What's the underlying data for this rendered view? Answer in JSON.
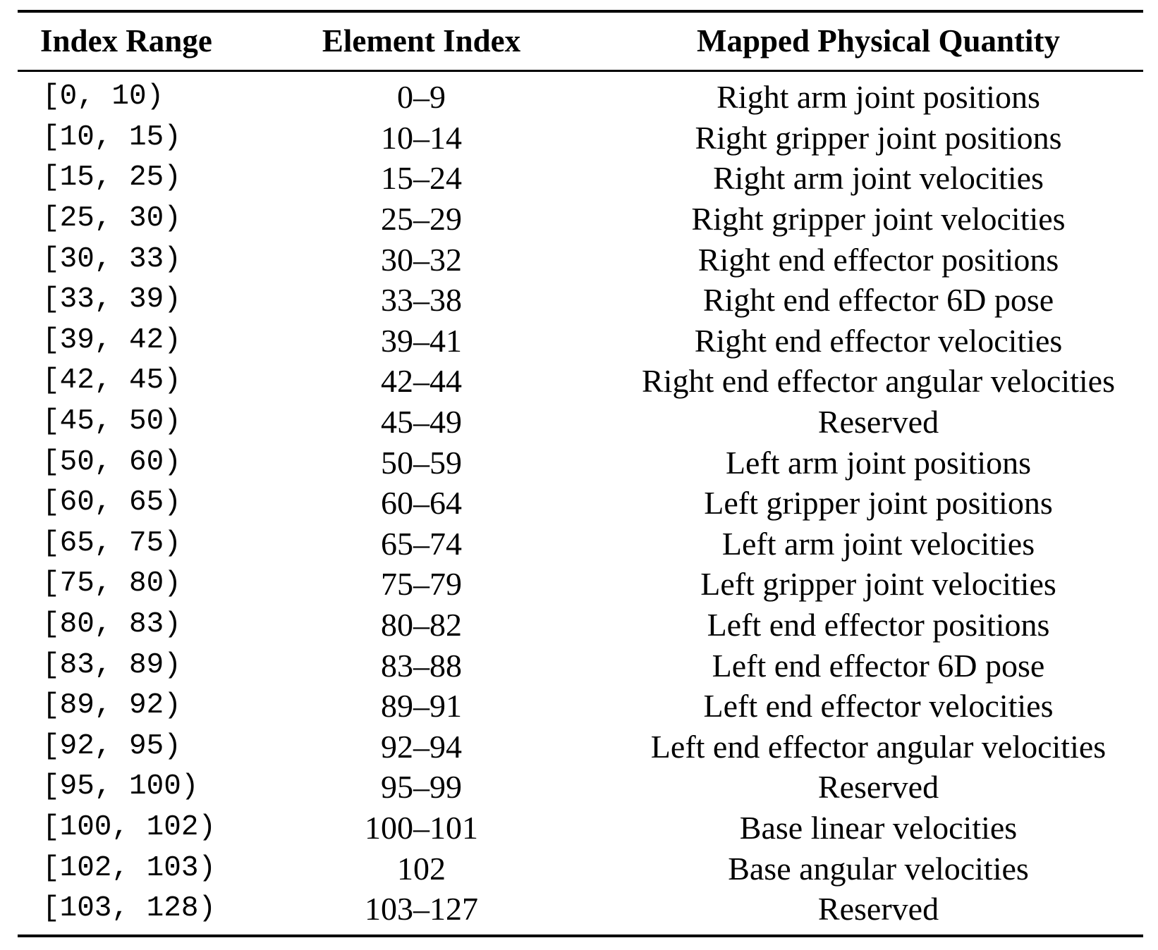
{
  "table": {
    "headers": {
      "index_range": "Index Range",
      "element_index": "Element Index",
      "mapped_quantity": "Mapped Physical Quantity"
    },
    "rows": [
      {
        "range": "[0, 10)",
        "element": "0–9",
        "quantity": "Right arm joint positions"
      },
      {
        "range": "[10, 15)",
        "element": "10–14",
        "quantity": "Right gripper joint positions"
      },
      {
        "range": "[15, 25)",
        "element": "15–24",
        "quantity": "Right arm joint velocities"
      },
      {
        "range": "[25, 30)",
        "element": "25–29",
        "quantity": "Right gripper joint velocities"
      },
      {
        "range": "[30, 33)",
        "element": "30–32",
        "quantity": "Right end effector positions"
      },
      {
        "range": "[33, 39)",
        "element": "33–38",
        "quantity": "Right end effector 6D pose"
      },
      {
        "range": "[39, 42)",
        "element": "39–41",
        "quantity": "Right end effector velocities"
      },
      {
        "range": "[42, 45)",
        "element": "42–44",
        "quantity": "Right end effector angular velocities"
      },
      {
        "range": "[45, 50)",
        "element": "45–49",
        "quantity": "Reserved"
      },
      {
        "range": "[50, 60)",
        "element": "50–59",
        "quantity": "Left arm joint positions"
      },
      {
        "range": "[60, 65)",
        "element": "60–64",
        "quantity": "Left gripper joint positions"
      },
      {
        "range": "[65, 75)",
        "element": "65–74",
        "quantity": "Left arm joint velocities"
      },
      {
        "range": "[75, 80)",
        "element": "75–79",
        "quantity": "Left gripper joint velocities"
      },
      {
        "range": "[80, 83)",
        "element": "80–82",
        "quantity": "Left end effector positions"
      },
      {
        "range": "[83, 89)",
        "element": "83–88",
        "quantity": "Left end effector 6D pose"
      },
      {
        "range": "[89, 92)",
        "element": "89–91",
        "quantity": "Left end effector velocities"
      },
      {
        "range": "[92, 95)",
        "element": "92–94",
        "quantity": "Left end effector angular velocities"
      },
      {
        "range": "[95, 100)",
        "element": "95–99",
        "quantity": "Reserved"
      },
      {
        "range": "[100, 102)",
        "element": "100–101",
        "quantity": "Base linear velocities"
      },
      {
        "range": "[102, 103)",
        "element": "102",
        "quantity": "Base angular velocities"
      },
      {
        "range": "[103, 128)",
        "element": "103–127",
        "quantity": "Reserved"
      }
    ]
  }
}
